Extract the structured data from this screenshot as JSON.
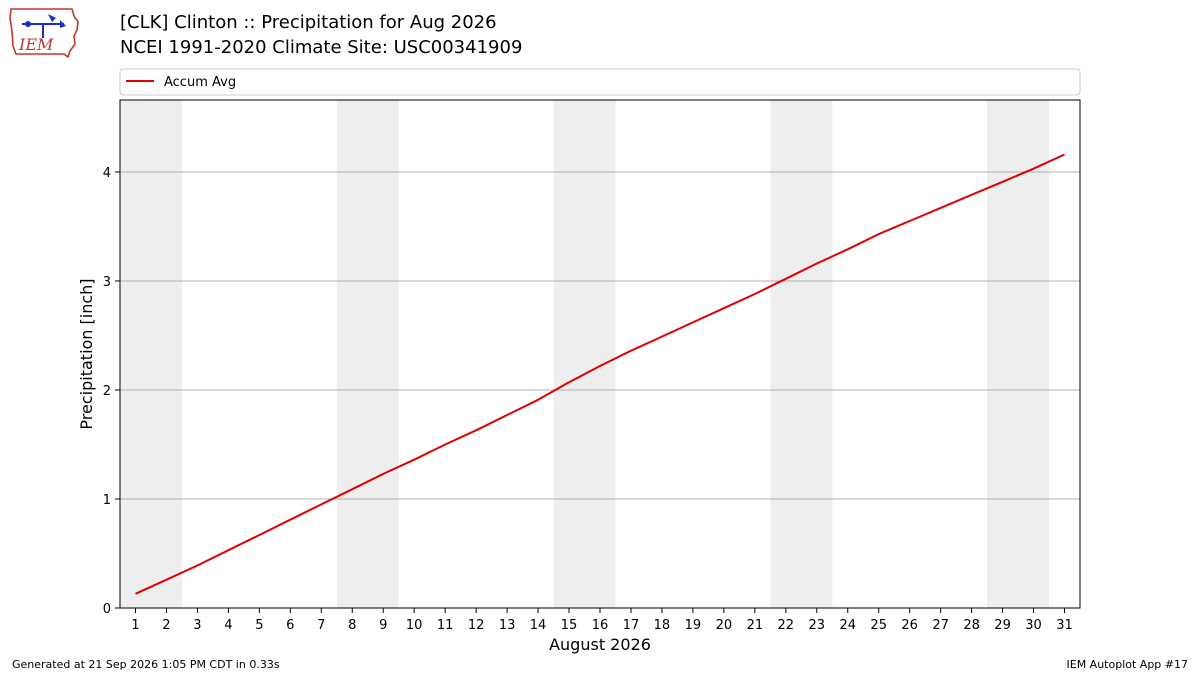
{
  "header": {
    "logo_text": "IEM",
    "title_line1": "[CLK] Clinton :: Precipitation for Aug 2026",
    "title_line2": "NCEI 1991-2020 Climate Site: USC00341909"
  },
  "footer": {
    "generated": "Generated at 21 Sep 2026 1:05 PM CDT in 0.33s",
    "app": "IEM Autoplot App #17"
  },
  "colors": {
    "line": "#e00000",
    "weekend_shade": "#eeeeee",
    "grid": "#b0b0b0"
  },
  "chart_data": {
    "type": "line",
    "xlabel": "August 2026",
    "ylabel": "Precipitation [inch]",
    "xlim": [
      0.5,
      31.5
    ],
    "ylim": [
      0,
      4.66
    ],
    "yticks": [
      0,
      1,
      2,
      3,
      4
    ],
    "grid": "horizontal",
    "legend": "top",
    "x": [
      1,
      2,
      3,
      4,
      5,
      6,
      7,
      8,
      9,
      10,
      11,
      12,
      13,
      14,
      15,
      16,
      17,
      18,
      19,
      20,
      21,
      22,
      23,
      24,
      25,
      26,
      27,
      28,
      29,
      30,
      31
    ],
    "x_ticks": [
      "1",
      "2",
      "3",
      "4",
      "5",
      "6",
      "7",
      "8",
      "9",
      "10",
      "11",
      "12",
      "13",
      "14",
      "15",
      "16",
      "17",
      "18",
      "19",
      "20",
      "21",
      "22",
      "23",
      "24",
      "25",
      "26",
      "27",
      "28",
      "29",
      "30",
      "31"
    ],
    "shaded_days": [
      [
        1,
        2
      ],
      [
        8,
        9
      ],
      [
        15,
        16
      ],
      [
        22,
        23
      ],
      [
        29,
        30
      ]
    ],
    "series": [
      {
        "name": "Accum Avg",
        "values": [
          0.13,
          0.26,
          0.39,
          0.53,
          0.67,
          0.81,
          0.95,
          1.09,
          1.23,
          1.36,
          1.5,
          1.63,
          1.77,
          1.91,
          2.07,
          2.22,
          2.36,
          2.49,
          2.62,
          2.75,
          2.88,
          3.02,
          3.16,
          3.29,
          3.43,
          3.55,
          3.67,
          3.79,
          3.91,
          4.03,
          4.16
        ]
      }
    ]
  }
}
